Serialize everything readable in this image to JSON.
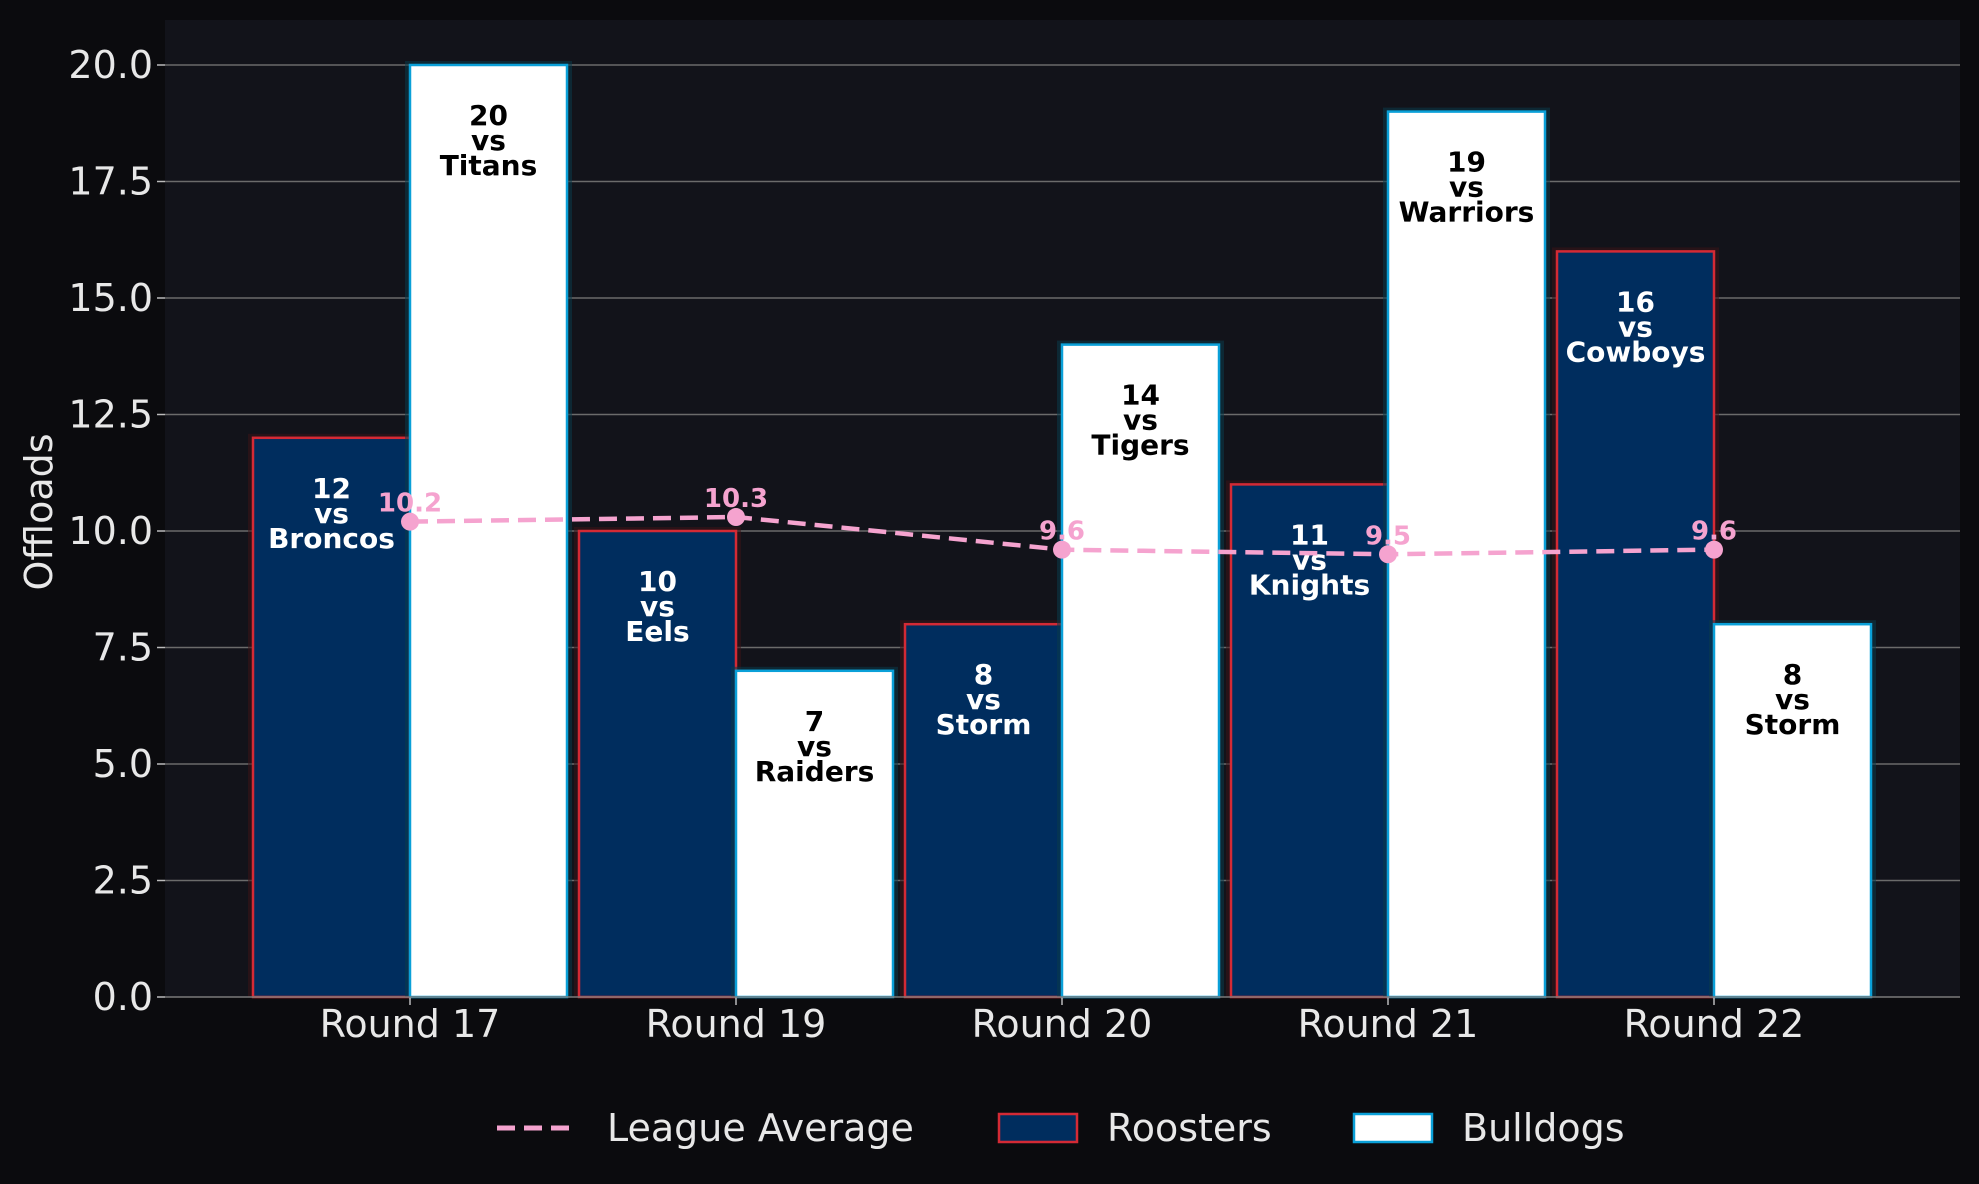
{
  "chart_data": {
    "type": "bar",
    "ylabel": "Offloads",
    "ylim": [
      0,
      21
    ],
    "yticks": [
      "0.0",
      "2.5",
      "5.0",
      "7.5",
      "10.0",
      "12.5",
      "15.0",
      "17.5",
      "20.0"
    ],
    "grid": true,
    "legend_position": "bottom-center",
    "categories": [
      "Round 17",
      "Round 19",
      "Round 20",
      "Round 21",
      "Round 22"
    ],
    "series": [
      {
        "name": "Roosters",
        "values": [
          12,
          10,
          8,
          11,
          16
        ],
        "labels": [
          [
            "12",
            "vs",
            "Broncos"
          ],
          [
            "10",
            "vs",
            "Eels"
          ],
          [
            "8",
            "vs",
            "Storm"
          ],
          [
            "11",
            "vs",
            "Knights"
          ],
          [
            "16",
            "vs",
            "Cowboys"
          ]
        ],
        "fill": "#002d5e",
        "edge": "#d42a35",
        "label_color": "#ffffff"
      },
      {
        "name": "Bulldogs",
        "values": [
          20,
          7,
          14,
          19,
          8
        ],
        "labels": [
          [
            "20",
            "vs",
            "Titans"
          ],
          [
            "7",
            "vs",
            "Raiders"
          ],
          [
            "14",
            "vs",
            "Tigers"
          ],
          [
            "19",
            "vs",
            "Warriors"
          ],
          [
            "8",
            "vs",
            "Storm"
          ]
        ],
        "fill": "#ffffff",
        "edge": "#0aa0d8",
        "label_color": "#000000"
      }
    ],
    "line": {
      "name": "League Average",
      "values": [
        10.2,
        10.3,
        9.6,
        9.5,
        9.6
      ],
      "labels": [
        "10.2",
        "10.3",
        "9.6",
        "9.5",
        "9.6"
      ],
      "color": "#f5a3cf",
      "style": "dashed"
    }
  }
}
